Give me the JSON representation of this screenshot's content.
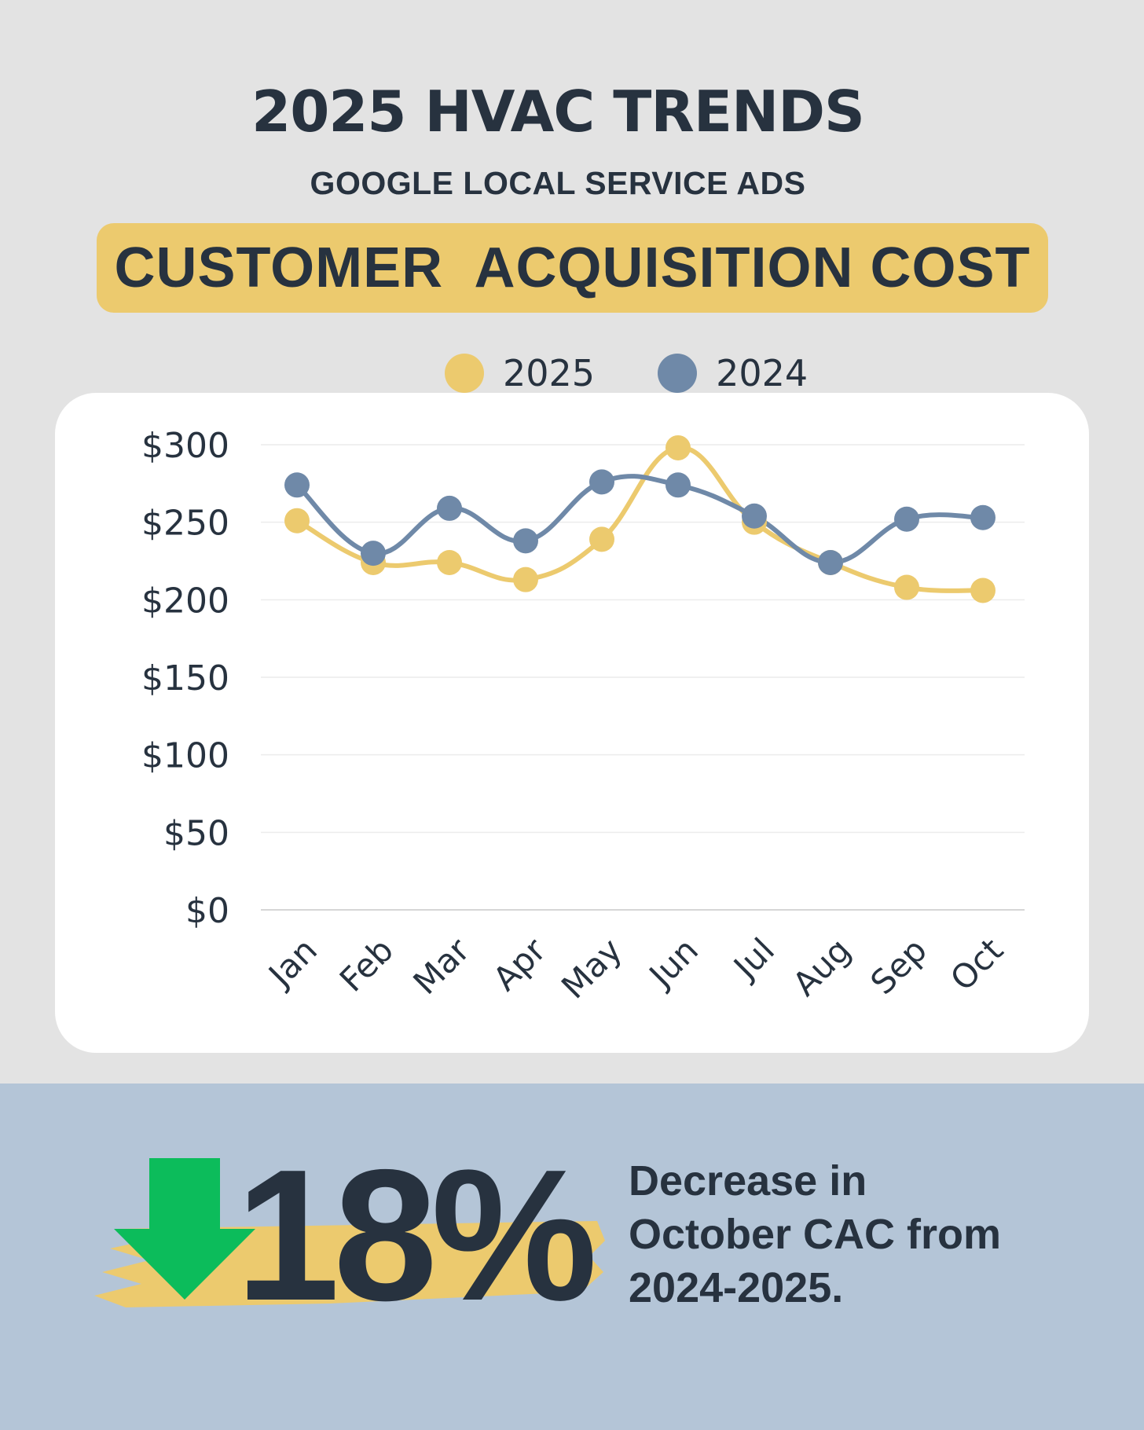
{
  "header": {
    "title": "2025 HVAC TRENDS",
    "subtitle": "GOOGLE LOCAL SERVICE ADS",
    "banner": "CUSTOMER  ACQUISITION COST"
  },
  "colors": {
    "series_2025": "#ecca6e",
    "series_2024": "#6f89a8",
    "banner_bg": "#ecca6e",
    "bottom_bg": "#b4c5d7",
    "arrow": "#0cbc5b",
    "text": "#27323f"
  },
  "legend": [
    {
      "label": "2025",
      "color": "#ecca6e"
    },
    {
      "label": "2024",
      "color": "#6f89a8"
    }
  ],
  "chart_data": {
    "type": "line",
    "categories": [
      "Jan",
      "Feb",
      "Mar",
      "Apr",
      "May",
      "Jun",
      "Jul",
      "Aug",
      "Sep",
      "Oct"
    ],
    "series": [
      {
        "name": "2025",
        "color": "#ecca6e",
        "values": [
          251,
          224,
          224,
          213,
          239,
          298,
          250,
          224,
          208,
          206
        ]
      },
      {
        "name": "2024",
        "color": "#6f89a8",
        "values": [
          274,
          230,
          259,
          238,
          276,
          274,
          254,
          224,
          252,
          253
        ]
      }
    ],
    "y_ticks": [
      0,
      50,
      100,
      150,
      200,
      250,
      300
    ],
    "y_tick_labels": [
      "$0",
      "$50",
      "$100",
      "$150",
      "$200",
      "$250",
      "$300"
    ],
    "ylim": [
      0,
      300
    ],
    "grid": true,
    "smooth": true,
    "legend_position": "top"
  },
  "summary": {
    "stat": "18%",
    "direction_icon": "down-arrow-icon",
    "description_lines": [
      "Decrease in",
      "October CAC from",
      "2024-2025."
    ]
  }
}
